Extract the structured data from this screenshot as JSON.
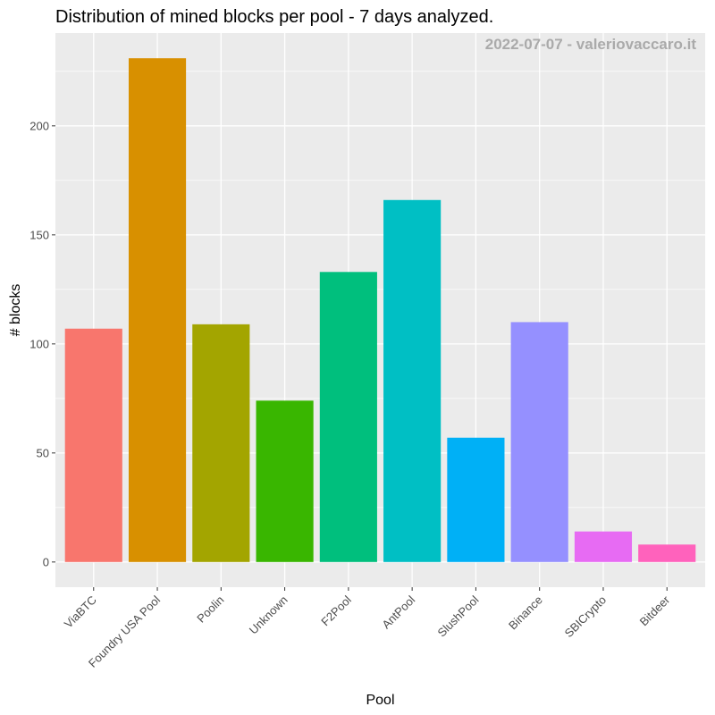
{
  "chart_data": {
    "type": "bar",
    "title": "Distribution of mined blocks per pool - 7 days analyzed.",
    "watermark": "2022-07-07 - valeriovaccaro.it",
    "xlabel": "Pool",
    "ylabel": "# blocks",
    "categories": [
      "ViaBTC",
      "Foundry USA Pool",
      "Poolin",
      "Unknown",
      "F2Pool",
      "AntPool",
      "SlushPool",
      "Binance",
      "SBICrypto",
      "Bitdeer"
    ],
    "values": [
      107,
      231,
      109,
      74,
      133,
      166,
      57,
      110,
      14,
      8
    ],
    "colors": [
      "#F8766D",
      "#D89000",
      "#A3A500",
      "#39B600",
      "#00BF7D",
      "#00BFC4",
      "#00B0F6",
      "#9590FF",
      "#E76BF3",
      "#FF62BC"
    ],
    "ylim": [
      -11.55,
      242.55
    ],
    "yticks": [
      0,
      50,
      100,
      150,
      200
    ],
    "grid": true,
    "legend": "none",
    "panel_background": "#EBEBEB"
  }
}
